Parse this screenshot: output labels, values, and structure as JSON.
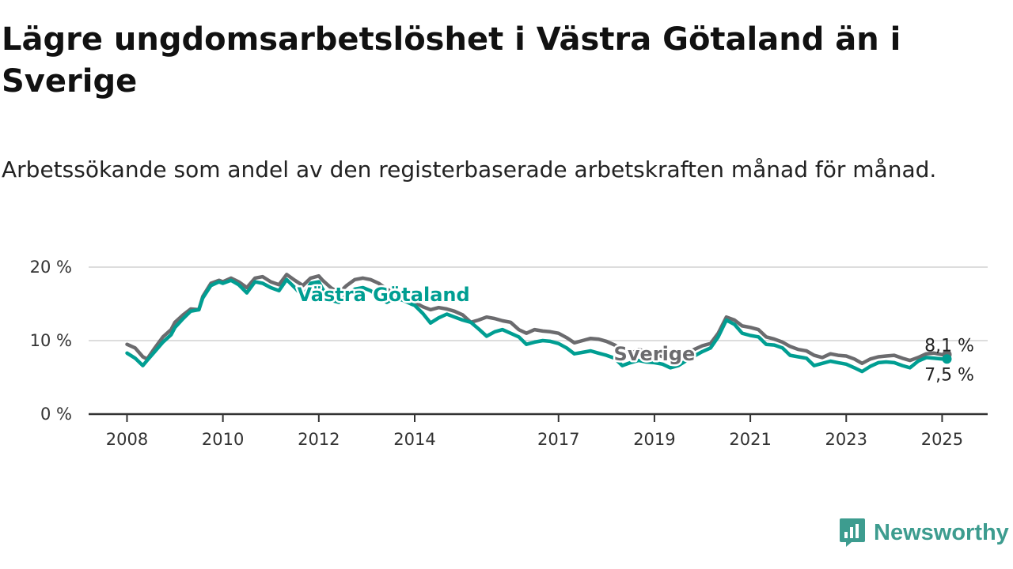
{
  "title": "Lägre ungdomsarbetslöshet i Västra Götaland än i Sverige",
  "subtitle": "Arbetssökande som andel av den registerbaserade arbetskraften månad för månad.",
  "brand": {
    "name": "Newsworthy",
    "icon": "newsworthy-logo-icon"
  },
  "colors": {
    "vastra_gotaland": "#009e92",
    "sverige": "#6b6b6e",
    "grid": "#dddddd",
    "axis": "#333333"
  },
  "chart_data": {
    "type": "line",
    "y_ticks": [
      "0 %",
      "10 %",
      "20 %"
    ],
    "x_ticks": [
      "2008",
      "2010",
      "2012",
      "2014",
      "2017",
      "2019",
      "2021",
      "2023",
      "2025"
    ],
    "ylim": [
      0,
      20
    ],
    "xlim": [
      2007.2,
      2025.95
    ],
    "grid": "horizontal",
    "series": [
      {
        "name": "Sverige",
        "color": "#6b6b6e",
        "end_label": "8,1 %",
        "points": [
          [
            2008.0,
            9.5
          ],
          [
            2008.17,
            9.0
          ],
          [
            2008.33,
            7.8
          ],
          [
            2008.42,
            7.5
          ],
          [
            2008.58,
            9.0
          ],
          [
            2008.75,
            10.5
          ],
          [
            2008.92,
            11.5
          ],
          [
            2009.0,
            12.5
          ],
          [
            2009.17,
            13.5
          ],
          [
            2009.33,
            14.3
          ],
          [
            2009.5,
            14.2
          ],
          [
            2009.58,
            16.0
          ],
          [
            2009.75,
            17.8
          ],
          [
            2009.92,
            18.2
          ],
          [
            2010.0,
            18.0
          ],
          [
            2010.17,
            18.5
          ],
          [
            2010.33,
            18.0
          ],
          [
            2010.5,
            17.2
          ],
          [
            2010.67,
            18.5
          ],
          [
            2010.83,
            18.7
          ],
          [
            2011.0,
            18.0
          ],
          [
            2011.17,
            17.6
          ],
          [
            2011.33,
            19.0
          ],
          [
            2011.5,
            18.2
          ],
          [
            2011.67,
            17.5
          ],
          [
            2011.83,
            18.5
          ],
          [
            2012.0,
            18.8
          ],
          [
            2012.08,
            18.2
          ],
          [
            2012.25,
            17.2
          ],
          [
            2012.42,
            16.5
          ],
          [
            2012.58,
            17.5
          ],
          [
            2012.75,
            18.3
          ],
          [
            2012.92,
            18.5
          ],
          [
            2013.08,
            18.3
          ],
          [
            2013.25,
            17.8
          ],
          [
            2013.42,
            17.0
          ],
          [
            2013.58,
            16.5
          ],
          [
            2013.75,
            16.0
          ],
          [
            2013.92,
            15.5
          ],
          [
            2014.0,
            15.2
          ],
          [
            2014.17,
            14.6
          ],
          [
            2014.33,
            14.2
          ],
          [
            2014.5,
            14.5
          ],
          [
            2014.67,
            14.3
          ],
          [
            2014.83,
            14.0
          ],
          [
            2015.0,
            13.5
          ],
          [
            2015.17,
            12.5
          ],
          [
            2015.33,
            12.8
          ],
          [
            2015.5,
            13.2
          ],
          [
            2015.67,
            13.0
          ],
          [
            2015.83,
            12.7
          ],
          [
            2016.0,
            12.5
          ],
          [
            2016.17,
            11.5
          ],
          [
            2016.33,
            11.0
          ],
          [
            2016.5,
            11.5
          ],
          [
            2016.67,
            11.3
          ],
          [
            2016.83,
            11.2
          ],
          [
            2017.0,
            11.0
          ],
          [
            2017.17,
            10.4
          ],
          [
            2017.33,
            9.7
          ],
          [
            2017.5,
            10.0
          ],
          [
            2017.67,
            10.3
          ],
          [
            2017.83,
            10.2
          ],
          [
            2018.0,
            9.9
          ],
          [
            2018.17,
            9.4
          ],
          [
            2018.33,
            8.8
          ],
          [
            2018.5,
            8.2
          ],
          [
            2018.67,
            8.8
          ],
          [
            2018.83,
            8.5
          ],
          [
            2019.0,
            8.3
          ],
          [
            2019.17,
            7.8
          ],
          [
            2019.33,
            7.5
          ],
          [
            2019.5,
            7.7
          ],
          [
            2019.67,
            8.3
          ],
          [
            2019.83,
            8.8
          ],
          [
            2020.0,
            9.3
          ],
          [
            2020.17,
            9.6
          ],
          [
            2020.33,
            11.0
          ],
          [
            2020.5,
            13.2
          ],
          [
            2020.67,
            12.8
          ],
          [
            2020.83,
            12.0
          ],
          [
            2021.0,
            11.8
          ],
          [
            2021.17,
            11.5
          ],
          [
            2021.33,
            10.5
          ],
          [
            2021.5,
            10.2
          ],
          [
            2021.67,
            9.8
          ],
          [
            2021.83,
            9.2
          ],
          [
            2022.0,
            8.8
          ],
          [
            2022.17,
            8.6
          ],
          [
            2022.33,
            8.0
          ],
          [
            2022.5,
            7.7
          ],
          [
            2022.67,
            8.2
          ],
          [
            2022.83,
            8.0
          ],
          [
            2023.0,
            7.9
          ],
          [
            2023.17,
            7.5
          ],
          [
            2023.33,
            6.9
          ],
          [
            2023.5,
            7.5
          ],
          [
            2023.67,
            7.8
          ],
          [
            2023.83,
            7.9
          ],
          [
            2024.0,
            8.0
          ],
          [
            2024.17,
            7.6
          ],
          [
            2024.33,
            7.3
          ],
          [
            2024.5,
            7.7
          ],
          [
            2024.67,
            8.2
          ],
          [
            2024.83,
            8.3
          ],
          [
            2025.0,
            8.1
          ],
          [
            2025.1,
            8.1
          ]
        ]
      },
      {
        "name": "Västra Götaland",
        "color": "#009e92",
        "end_label": "7,5 %",
        "points": [
          [
            2008.0,
            8.3
          ],
          [
            2008.17,
            7.6
          ],
          [
            2008.33,
            6.6
          ],
          [
            2008.42,
            7.3
          ],
          [
            2008.58,
            8.5
          ],
          [
            2008.75,
            9.8
          ],
          [
            2008.92,
            10.8
          ],
          [
            2009.0,
            11.8
          ],
          [
            2009.17,
            13.0
          ],
          [
            2009.33,
            14.0
          ],
          [
            2009.5,
            14.2
          ],
          [
            2009.58,
            15.8
          ],
          [
            2009.75,
            17.5
          ],
          [
            2009.92,
            18.0
          ],
          [
            2010.0,
            17.8
          ],
          [
            2010.17,
            18.2
          ],
          [
            2010.33,
            17.6
          ],
          [
            2010.5,
            16.5
          ],
          [
            2010.67,
            18.0
          ],
          [
            2010.83,
            17.8
          ],
          [
            2011.0,
            17.2
          ],
          [
            2011.17,
            16.8
          ],
          [
            2011.33,
            18.3
          ],
          [
            2011.5,
            17.2
          ],
          [
            2011.67,
            16.0
          ],
          [
            2011.83,
            17.8
          ],
          [
            2012.0,
            18.0
          ],
          [
            2012.08,
            17.0
          ],
          [
            2012.25,
            15.5
          ],
          [
            2012.42,
            15.2
          ],
          [
            2012.58,
            16.2
          ],
          [
            2012.75,
            17.0
          ],
          [
            2012.92,
            17.2
          ],
          [
            2013.08,
            16.8
          ],
          [
            2013.25,
            16.0
          ],
          [
            2013.42,
            15.2
          ],
          [
            2013.58,
            15.8
          ],
          [
            2013.75,
            15.5
          ],
          [
            2013.92,
            15.0
          ],
          [
            2014.0,
            14.8
          ],
          [
            2014.17,
            13.7
          ],
          [
            2014.33,
            12.4
          ],
          [
            2014.5,
            13.1
          ],
          [
            2014.67,
            13.6
          ],
          [
            2014.83,
            13.2
          ],
          [
            2015.0,
            12.8
          ],
          [
            2015.17,
            12.5
          ],
          [
            2015.33,
            11.6
          ],
          [
            2015.5,
            10.6
          ],
          [
            2015.67,
            11.2
          ],
          [
            2015.83,
            11.5
          ],
          [
            2016.0,
            11.0
          ],
          [
            2016.17,
            10.5
          ],
          [
            2016.33,
            9.5
          ],
          [
            2016.5,
            9.8
          ],
          [
            2016.67,
            10.0
          ],
          [
            2016.83,
            9.9
          ],
          [
            2017.0,
            9.6
          ],
          [
            2017.17,
            9.0
          ],
          [
            2017.33,
            8.2
          ],
          [
            2017.5,
            8.4
          ],
          [
            2017.67,
            8.6
          ],
          [
            2017.83,
            8.3
          ],
          [
            2018.0,
            8.0
          ],
          [
            2018.17,
            7.6
          ],
          [
            2018.33,
            6.6
          ],
          [
            2018.5,
            7.0
          ],
          [
            2018.67,
            7.3
          ],
          [
            2018.83,
            7.1
          ],
          [
            2019.0,
            7.0
          ],
          [
            2019.17,
            6.8
          ],
          [
            2019.33,
            6.3
          ],
          [
            2019.5,
            6.6
          ],
          [
            2019.67,
            7.3
          ],
          [
            2019.83,
            7.9
          ],
          [
            2020.0,
            8.5
          ],
          [
            2020.17,
            9.0
          ],
          [
            2020.33,
            10.5
          ],
          [
            2020.5,
            12.8
          ],
          [
            2020.67,
            12.2
          ],
          [
            2020.83,
            11.0
          ],
          [
            2021.0,
            10.7
          ],
          [
            2021.17,
            10.5
          ],
          [
            2021.33,
            9.5
          ],
          [
            2021.5,
            9.4
          ],
          [
            2021.67,
            9.0
          ],
          [
            2021.83,
            8.0
          ],
          [
            2022.0,
            7.8
          ],
          [
            2022.17,
            7.6
          ],
          [
            2022.33,
            6.6
          ],
          [
            2022.5,
            6.9
          ],
          [
            2022.67,
            7.2
          ],
          [
            2022.83,
            7.0
          ],
          [
            2023.0,
            6.8
          ],
          [
            2023.17,
            6.3
          ],
          [
            2023.33,
            5.8
          ],
          [
            2023.5,
            6.5
          ],
          [
            2023.67,
            7.0
          ],
          [
            2023.83,
            7.1
          ],
          [
            2024.0,
            7.0
          ],
          [
            2024.17,
            6.6
          ],
          [
            2024.33,
            6.3
          ],
          [
            2024.5,
            7.2
          ],
          [
            2024.67,
            7.7
          ],
          [
            2024.83,
            7.6
          ],
          [
            2025.0,
            7.5
          ],
          [
            2025.1,
            7.5
          ]
        ]
      }
    ]
  }
}
